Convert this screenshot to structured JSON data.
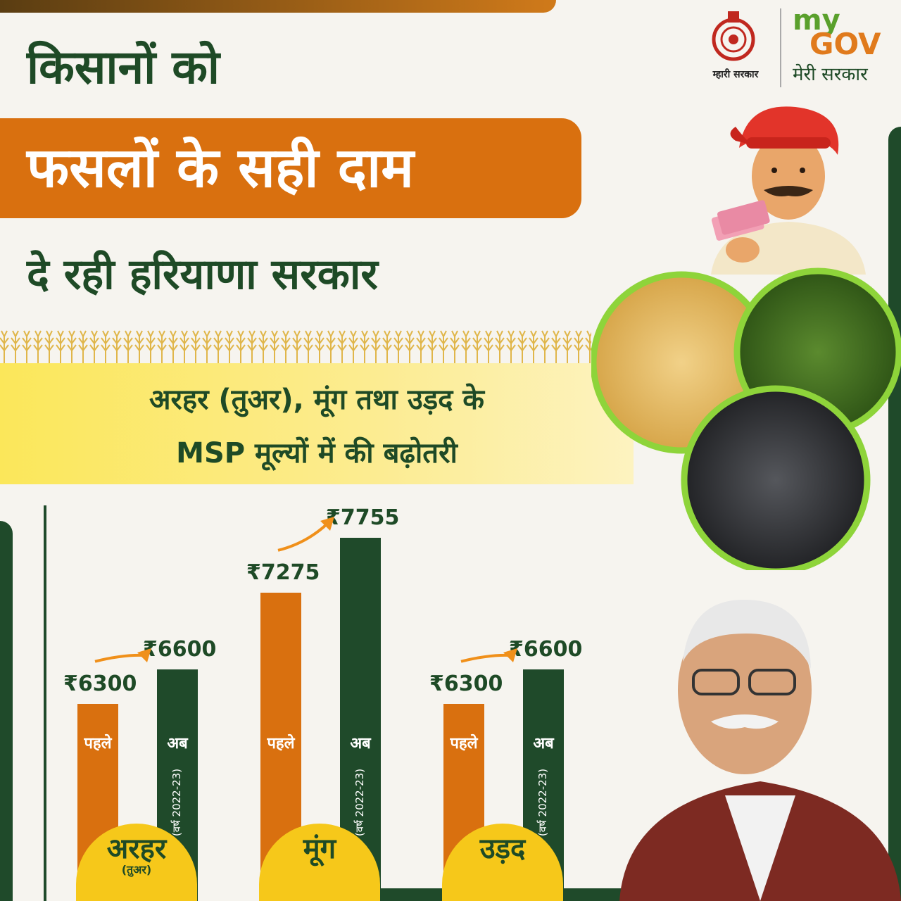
{
  "header": {
    "line1": "किसानों को",
    "line2": "फसलों के सही दाम",
    "line3": "दे रही हरियाणा सरकार"
  },
  "band": {
    "line1": "अरहर (तुअर), मूंग तथा उड़द के",
    "line2": "MSP मूल्यों में की बढ़ोतरी"
  },
  "logos": {
    "haryana_caption": "म्हारी सरकार",
    "mygov_my": "my",
    "mygov_gov": "GOV",
    "mygov_caption": "मेरी सरकार"
  },
  "colors": {
    "before": "#d9700f",
    "now": "#1f4a2a",
    "badge": "#f6c81a",
    "text_green": "#1e4a26"
  },
  "chart_data": {
    "type": "bar",
    "categories": [
      "अरहर",
      "मूंग",
      "उड़द"
    ],
    "category_subtitles": [
      "(तुअर)",
      "",
      ""
    ],
    "bar_labels": [
      "पहले",
      "अब"
    ],
    "year_note": "(वर्ष 2022-23)",
    "series": [
      {
        "name": "पहले",
        "values": [
          6300,
          7275,
          6300
        ],
        "display": [
          "₹6300",
          "₹7275",
          "₹6300"
        ]
      },
      {
        "name": "अब",
        "values": [
          6600,
          7755,
          6600
        ],
        "display": [
          "₹6600",
          "₹7755",
          "₹6600"
        ]
      }
    ],
    "ylim": [
      5000,
      8000
    ],
    "xlabel": "",
    "ylabel": ""
  }
}
